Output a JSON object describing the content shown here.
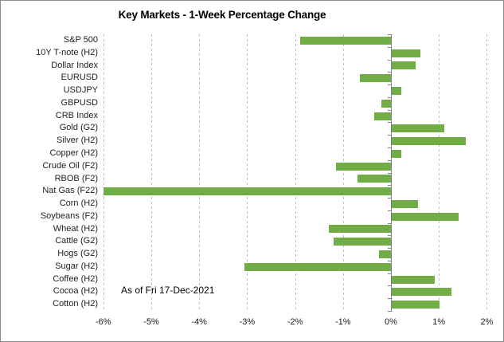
{
  "chart_data": {
    "type": "bar",
    "orientation": "horizontal",
    "title": "Key Markets - 1-Week Percentage Change",
    "annotation": "As of Fri 17-Dec-2021",
    "categories": [
      "S&P 500",
      "10Y T-note (H2)",
      "Dollar Index",
      "EURUSD",
      "USDJPY",
      "GBPUSD",
      "CRB Index",
      "Gold (G2)",
      "Silver (H2)",
      "Copper (H2)",
      "Crude Oil (F2)",
      "RBOB (F2)",
      "Nat Gas (F22)",
      "Corn (H2)",
      "Soybeans (F2)",
      "Wheat (H2)",
      "Cattle (G2)",
      "Hogs (G2)",
      "Sugar (H2)",
      "Coffee (H2)",
      "Cocoa (H2)",
      "Cotton (H2)"
    ],
    "values": [
      -1.9,
      0.6,
      0.5,
      -0.65,
      0.2,
      -0.2,
      -0.35,
      1.1,
      1.55,
      0.2,
      -1.15,
      -0.7,
      -6.0,
      0.55,
      1.4,
      -1.3,
      -1.2,
      -0.25,
      -3.05,
      0.9,
      1.25,
      1.0
    ],
    "value_unit": "%",
    "xlabel": "",
    "ylabel": "",
    "xlim": [
      -6,
      2
    ],
    "x_ticks": [
      -6,
      -5,
      -4,
      -3,
      -2,
      -1,
      0,
      1,
      2
    ],
    "x_tick_labels": [
      "-6%",
      "-5%",
      "-4%",
      "-3%",
      "-2%",
      "-1%",
      "0%",
      "1%",
      "2%"
    ],
    "grid": "vertical-dashed",
    "legend": "none",
    "bar_color": "#70AD47",
    "gridline_color": "#A7C3E3",
    "axis_color": "#808080"
  }
}
